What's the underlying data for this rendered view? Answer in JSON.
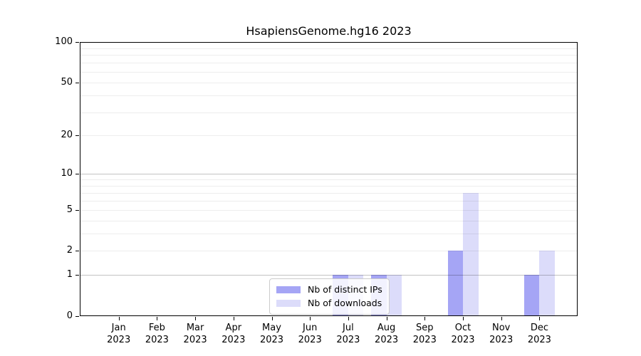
{
  "chart_data": {
    "type": "bar",
    "title": "HsapiensGenome.hg16 2023",
    "x_month_labels": [
      "Jan",
      "Feb",
      "Mar",
      "Apr",
      "May",
      "Jun",
      "Jul",
      "Aug",
      "Sep",
      "Oct",
      "Nov",
      "Dec"
    ],
    "x_year_label": "2023",
    "series": [
      {
        "name": "Nb of distinct IPs",
        "color": "#a5a5f5",
        "values": [
          0,
          0,
          0,
          0,
          0,
          0,
          1,
          1,
          0,
          2,
          0,
          1
        ]
      },
      {
        "name": "Nb of downloads",
        "color": "#dcdcfa",
        "values": [
          0,
          0,
          0,
          0,
          0,
          0,
          1,
          1,
          0,
          7,
          0,
          2
        ]
      }
    ],
    "yscale": "log1p",
    "ylim": [
      0,
      100
    ],
    "ytick_labels": [
      "0",
      "1",
      "2",
      "5",
      "10",
      "20",
      "50",
      "100"
    ],
    "ytick_values": [
      0,
      1,
      2,
      5,
      10,
      20,
      50,
      100
    ],
    "grid": "horizontal major+minor, drawn over bars",
    "legend_position": "inside, lower center"
  }
}
